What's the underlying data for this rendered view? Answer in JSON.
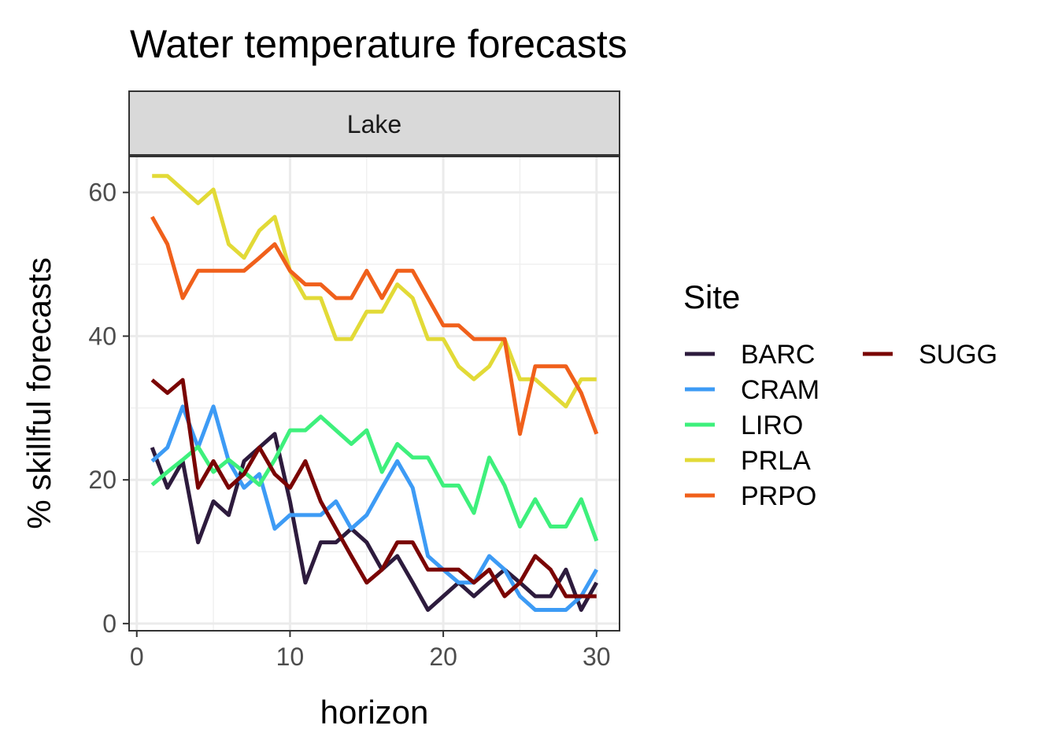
{
  "chart_data": {
    "type": "line",
    "title": "Water temperature forecasts",
    "facet": "Lake",
    "xlabel": "horizon",
    "ylabel": "% skillful forecasts",
    "xlim": [
      -0.5,
      31.5
    ],
    "ylim": [
      -1,
      65
    ],
    "xticks": [
      0,
      10,
      20,
      30
    ],
    "yticks": [
      0,
      20,
      40,
      60
    ],
    "grid": true,
    "legend_title": "Site",
    "legend_position": "right",
    "x": [
      1,
      2,
      3,
      4,
      5,
      6,
      7,
      8,
      9,
      10,
      11,
      12,
      13,
      14,
      15,
      16,
      17,
      18,
      19,
      20,
      21,
      22,
      23,
      24,
      25,
      26,
      27,
      28,
      29,
      30
    ],
    "series": [
      {
        "name": "BARC",
        "color": "#2d1b3d",
        "values": [
          24.5,
          18.9,
          22.6,
          11.3,
          17,
          15.1,
          22.6,
          24.5,
          26.4,
          17,
          5.7,
          11.3,
          11.3,
          13.2,
          11.3,
          7.5,
          9.4,
          5.7,
          1.9,
          3.8,
          5.7,
          3.8,
          5.7,
          7.5,
          5.7,
          3.8,
          3.8,
          7.5,
          1.9,
          5.7
        ]
      },
      {
        "name": "CRAM",
        "color": "#3d9bf5",
        "values": [
          22.6,
          24.5,
          30.2,
          24.5,
          30.2,
          22.6,
          18.9,
          20.8,
          13.2,
          15.1,
          15.1,
          15.1,
          17,
          13.2,
          15.1,
          18.9,
          22.6,
          18.9,
          9.4,
          7.5,
          5.7,
          5.7,
          9.4,
          7.5,
          3.8,
          1.9,
          1.9,
          1.9,
          3.8,
          7.5
        ]
      },
      {
        "name": "LIRO",
        "color": "#3ef07c",
        "values": [
          19.3,
          21.1,
          22.8,
          24.6,
          21.1,
          22.8,
          21.1,
          19.3,
          22.8,
          26.9,
          26.9,
          28.8,
          26.9,
          25,
          26.9,
          21.1,
          25,
          23.1,
          23.1,
          19.2,
          19.2,
          15.4,
          23.1,
          19.2,
          13.5,
          17.3,
          13.5,
          13.5,
          17.3,
          11.5
        ]
      },
      {
        "name": "PRLA",
        "color": "#e2da37",
        "values": [
          62.3,
          62.3,
          60.4,
          58.5,
          60.4,
          52.8,
          50.9,
          54.7,
          56.6,
          49.1,
          45.3,
          45.3,
          39.6,
          39.6,
          43.4,
          43.4,
          47.2,
          45.3,
          39.6,
          39.6,
          35.8,
          34,
          35.8,
          39.6,
          34,
          34,
          32.1,
          30.2,
          34,
          34
        ]
      },
      {
        "name": "PRPO",
        "color": "#f0601b",
        "values": [
          56.6,
          52.8,
          45.3,
          49.1,
          49.1,
          49.1,
          49.1,
          50.9,
          52.8,
          49.1,
          47.2,
          47.2,
          45.3,
          45.3,
          49.1,
          45.3,
          49.1,
          49.1,
          45.3,
          41.5,
          41.5,
          39.6,
          39.6,
          39.6,
          26.4,
          35.8,
          35.8,
          35.8,
          32.1,
          26.4
        ]
      },
      {
        "name": "SUGG",
        "color": "#7a0403",
        "values": [
          33.9,
          32.1,
          33.9,
          18.9,
          22.6,
          18.9,
          20.8,
          24.5,
          20.8,
          18.9,
          22.6,
          17,
          13.2,
          9.4,
          5.7,
          7.5,
          11.3,
          11.3,
          7.5,
          7.5,
          7.5,
          5.7,
          7.5,
          3.8,
          5.7,
          9.4,
          7.5,
          3.8,
          3.8,
          3.8
        ]
      }
    ]
  }
}
